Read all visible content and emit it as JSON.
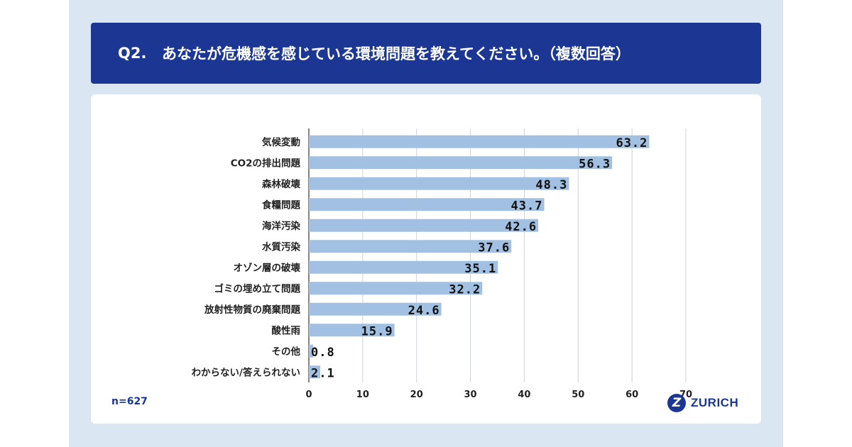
{
  "header": {
    "question_number": "Q2.",
    "question_text": "あなたが危機感を感じている環境問題を教えてください。（複数回答）"
  },
  "sample_size": "n=627",
  "brand": {
    "logo_letter": "Z",
    "name": "ZURICH"
  },
  "colors": {
    "header_bg": "#1b3793",
    "bar": "#a2c0e2",
    "panel_bg": "#dbe6f3",
    "grid": "#cfd3d8"
  },
  "chart_data": {
    "type": "bar",
    "orientation": "horizontal",
    "title": "",
    "xlabel": "",
    "ylabel": "",
    "xlim": [
      0,
      70
    ],
    "ticks": [
      0,
      10,
      20,
      30,
      40,
      50,
      60,
      70
    ],
    "grid": true,
    "categories": [
      "気候変動",
      "CO2の排出問題",
      "森林破壊",
      "食糧問題",
      "海洋汚染",
      "水質汚染",
      "オゾン層の破壊",
      "ゴミの埋め立て問題",
      "放射性物質の廃棄問題",
      "酸性雨",
      "その他",
      "わからない/答えられない"
    ],
    "values": [
      63.2,
      56.3,
      48.3,
      43.7,
      42.6,
      37.6,
      35.1,
      32.2,
      24.6,
      15.9,
      0.8,
      2.1
    ],
    "value_labels": [
      "63.2",
      "56.3",
      "48.3",
      "43.7",
      "42.6",
      "37.6",
      "35.1",
      "32.2",
      "24.6",
      "15.9",
      "0.8",
      "2.1"
    ]
  }
}
